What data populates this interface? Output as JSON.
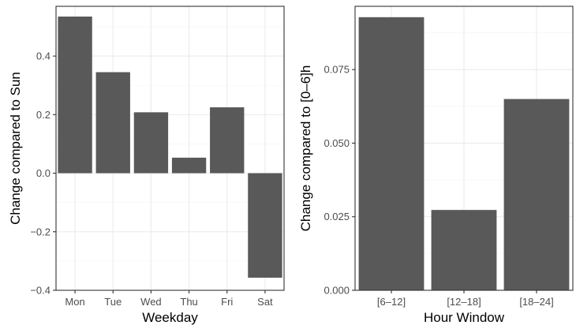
{
  "chart_data": [
    {
      "type": "bar",
      "categories": [
        "Mon",
        "Tue",
        "Wed",
        "Thu",
        "Fri",
        "Sat"
      ],
      "values": [
        0.535,
        0.345,
        0.208,
        0.053,
        0.225,
        -0.357
      ],
      "xlabel": "Weekday",
      "ylabel": "Change compared to Sun",
      "ylim": [
        -0.4,
        0.57
      ],
      "yticks": [
        -0.4,
        -0.2,
        0.0,
        0.2,
        0.4
      ],
      "ytick_labels": [
        "−0.4",
        "−0.2",
        "0.0",
        "0.2",
        "0.4"
      ],
      "bar_color": "#595959",
      "grid": true
    },
    {
      "type": "bar",
      "categories": [
        "[6–12]",
        "[12–18]",
        "[18–24]"
      ],
      "values": [
        0.0928,
        0.0273,
        0.065
      ],
      "xlabel": "Hour Window",
      "ylabel": "Change compared to [0–6]h",
      "ylim": [
        0.0,
        0.0965
      ],
      "yticks": [
        0.0,
        0.025,
        0.05,
        0.075
      ],
      "ytick_labels": [
        "0.000",
        "0.025",
        "0.050",
        "0.075"
      ],
      "bar_color": "#595959",
      "grid": true
    }
  ]
}
